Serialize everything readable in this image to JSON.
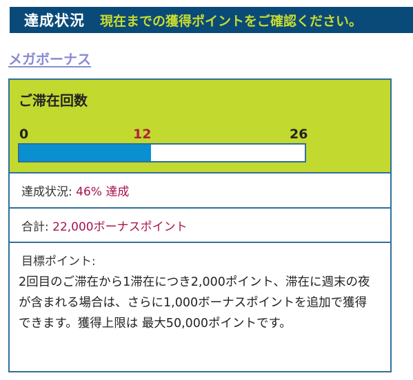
{
  "header": {
    "title": "達成状況",
    "subtitle": "現在までの獲得ポイントをご確認ください。"
  },
  "link": {
    "label": "メガボーナス"
  },
  "card": {
    "title": "ご滞在回数",
    "progress": {
      "start_label": "0",
      "current_label": "12",
      "end_label": "26",
      "current": 12,
      "max": 26,
      "fill_color": "#0a8fd0"
    },
    "status": {
      "label": "達成状況: ",
      "value": "46% 達成"
    },
    "total": {
      "label": "合計: ",
      "value": "22,000ボーナスポイント"
    },
    "target": {
      "label": "目標ポイント:",
      "body": "2回目のご滞在から1滞在につき2,000ポイント、滞在に週末の夜が含まれる場合は、さらに1,000ボーナスポイントを追加で獲得できます。獲得上限は 最大50,000ポイントです。"
    }
  },
  "colors": {
    "banner_bg": "#0a4a78",
    "banner_accent": "#c8dc2e",
    "card_top_bg": "#c2d92f",
    "border": "#2f6e9a",
    "highlight_text": "#a8124e"
  }
}
